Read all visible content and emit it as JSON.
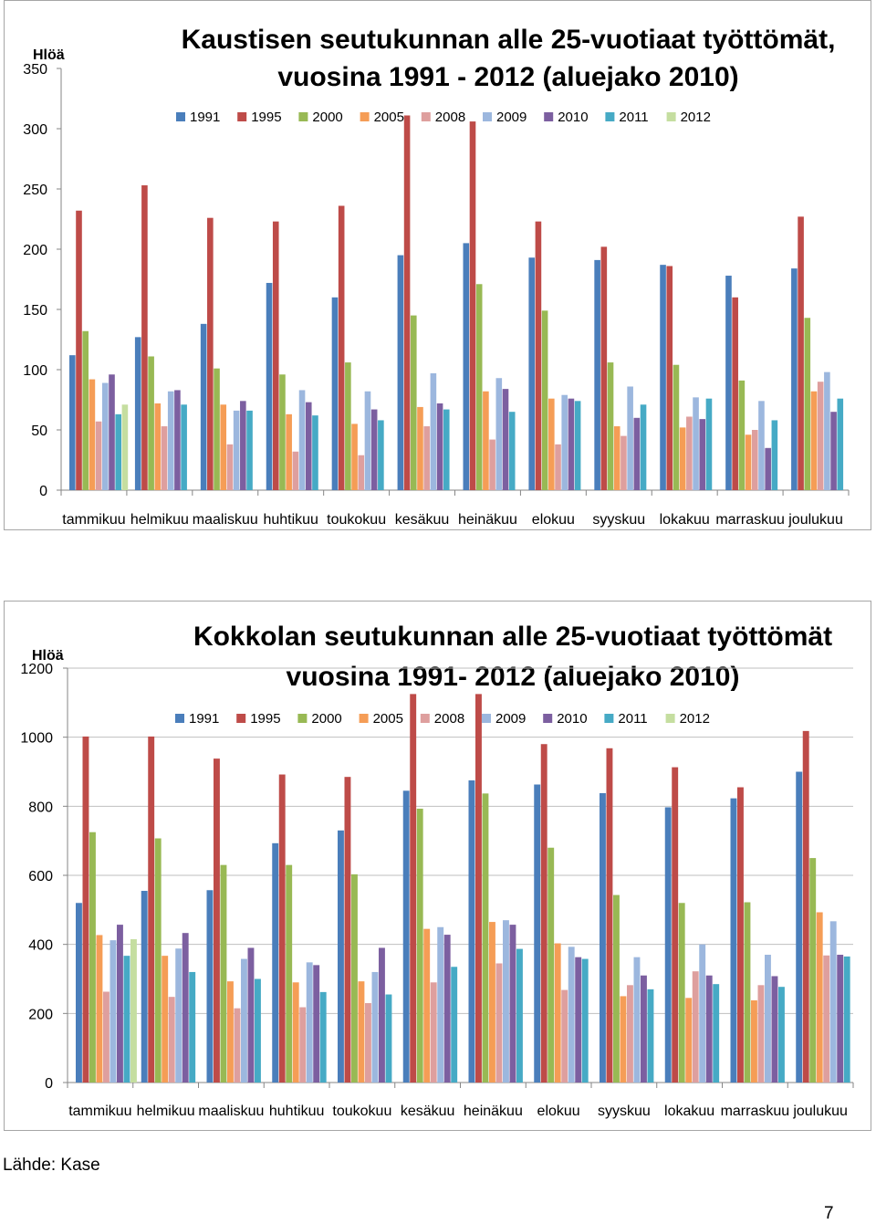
{
  "charts": [
    {
      "id": "kaustinen",
      "title_lines": [
        "Kaustisen seutukunnan alle 25-vuotiaat työttömät,",
        "vuosina 1991 - 2012 (aluejako 2010)"
      ],
      "ylabel": "Hlöä"
    },
    {
      "id": "kokkola",
      "title_lines": [
        "Kokkolan seutukunnan alle 25-vuotiaat työttömät",
        "vuosina 1991- 2012 (aluejako 2010)"
      ],
      "ylabel": "Hlöä"
    }
  ],
  "series_colors": {
    "1991": "#4a7ebb",
    "1995": "#be4b48",
    "2000": "#98b954",
    "2005": "#f59d56",
    "2008": "#de9f9e",
    "2009": "#9cb7de",
    "2010": "#7c5fa0",
    "2011": "#46aac5",
    "2012": "#c5dea0"
  },
  "chart_data": [
    {
      "type": "bar",
      "title": "Kaustisen seutukunnan alle 25-vuotiaat työttömät, vuosina 1991 - 2012 (aluejako 2010)",
      "ylabel": "Hlöä",
      "xlabel": "",
      "ylim": [
        0,
        350
      ],
      "yticks": [
        0,
        50,
        100,
        150,
        200,
        250,
        300,
        350
      ],
      "grid": false,
      "legend": "top",
      "categories": [
        "tammikuu",
        "helmikuu",
        "maaliskuu",
        "huhtikuu",
        "toukokuu",
        "kesäkuu",
        "heinäkuu",
        "elokuu",
        "syyskuu",
        "lokakuu",
        "marraskuu",
        "joulukuu"
      ],
      "series": [
        {
          "name": "1991",
          "values": [
            112,
            127,
            138,
            172,
            160,
            195,
            205,
            193,
            191,
            187,
            178,
            184
          ]
        },
        {
          "name": "1995",
          "values": [
            232,
            253,
            226,
            223,
            236,
            311,
            306,
            223,
            202,
            186,
            160,
            227
          ]
        },
        {
          "name": "2000",
          "values": [
            132,
            111,
            101,
            96,
            106,
            145,
            171,
            149,
            106,
            104,
            91,
            143
          ]
        },
        {
          "name": "2005",
          "values": [
            92,
            72,
            71,
            63,
            55,
            69,
            82,
            76,
            53,
            52,
            46,
            82
          ]
        },
        {
          "name": "2008",
          "values": [
            57,
            53,
            38,
            32,
            29,
            53,
            42,
            38,
            45,
            61,
            50,
            90
          ]
        },
        {
          "name": "2009",
          "values": [
            89,
            82,
            66,
            83,
            82,
            97,
            93,
            79,
            86,
            77,
            74,
            98
          ]
        },
        {
          "name": "2010",
          "values": [
            96,
            83,
            74,
            73,
            67,
            72,
            84,
            76,
            60,
            59,
            35,
            65
          ]
        },
        {
          "name": "2011",
          "values": [
            63,
            71,
            66,
            62,
            58,
            67,
            65,
            74,
            71,
            76,
            58,
            76
          ]
        },
        {
          "name": "2012",
          "values": [
            71,
            null,
            null,
            null,
            null,
            null,
            null,
            null,
            null,
            null,
            null,
            null
          ]
        }
      ]
    },
    {
      "type": "bar",
      "title": "Kokkolan seutukunnan alle 25-vuotiaat työttömät vuosina 1991- 2012 (aluejako 2010)",
      "ylabel": "Hlöä",
      "xlabel": "",
      "ylim": [
        0,
        1200
      ],
      "yticks": [
        0,
        200,
        400,
        600,
        800,
        1000,
        1200
      ],
      "grid": true,
      "legend": "top",
      "categories": [
        "tammikuu",
        "helmikuu",
        "maaliskuu",
        "huhtikuu",
        "toukokuu",
        "kesäkuu",
        "heinäkuu",
        "elokuu",
        "syyskuu",
        "lokakuu",
        "marraskuu",
        "joulukuu"
      ],
      "series": [
        {
          "name": "1991",
          "values": [
            520,
            555,
            557,
            693,
            730,
            845,
            875,
            863,
            838,
            797,
            823,
            900
          ]
        },
        {
          "name": "1995",
          "values": [
            1002,
            1002,
            938,
            892,
            885,
            1125,
            1125,
            980,
            968,
            913,
            855,
            1018
          ]
        },
        {
          "name": "2000",
          "values": [
            725,
            707,
            630,
            630,
            603,
            793,
            837,
            680,
            543,
            520,
            522,
            650
          ]
        },
        {
          "name": "2005",
          "values": [
            427,
            367,
            293,
            290,
            293,
            445,
            465,
            403,
            250,
            245,
            238,
            493
          ]
        },
        {
          "name": "2008",
          "values": [
            263,
            248,
            215,
            218,
            230,
            290,
            345,
            268,
            282,
            322,
            282,
            368
          ]
        },
        {
          "name": "2009",
          "values": [
            412,
            388,
            358,
            348,
            320,
            450,
            470,
            393,
            363,
            400,
            370,
            467
          ]
        },
        {
          "name": "2010",
          "values": [
            457,
            433,
            390,
            340,
            390,
            428,
            457,
            363,
            310,
            310,
            308,
            370
          ]
        },
        {
          "name": "2011",
          "values": [
            367,
            320,
            300,
            262,
            255,
            335,
            387,
            358,
            270,
            285,
            277,
            365
          ]
        },
        {
          "name": "2012",
          "values": [
            415,
            null,
            null,
            null,
            null,
            null,
            null,
            null,
            null,
            null,
            null,
            null
          ]
        }
      ]
    }
  ],
  "footer": {
    "source": "Lähde: Kase",
    "page_number": "7"
  }
}
